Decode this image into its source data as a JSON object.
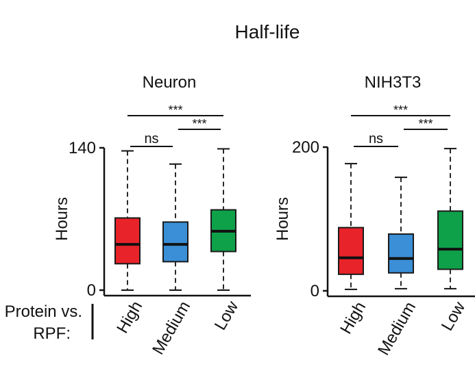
{
  "figure_title": "Half-life",
  "row_label_line1": "Protein vs.",
  "row_label_line2": "RPF:",
  "colors": {
    "High": "#e8232a",
    "Medium": "#3a8fd6",
    "Low": "#0fa14a",
    "edge": "#1a1a1a"
  },
  "chart_data": [
    {
      "type": "box",
      "title": "Neuron",
      "ylabel": "Hours",
      "xlabel": "",
      "ylim": [
        0,
        140
      ],
      "yticks": [
        0,
        140
      ],
      "categories": [
        "High",
        "Medium",
        "Low"
      ],
      "boxes": [
        {
          "category": "High",
          "whisker_low": 0,
          "q1": 26,
          "median": 45,
          "q3": 71,
          "whisker_high": 137
        },
        {
          "category": "Medium",
          "whisker_low": 0,
          "q1": 28,
          "median": 45,
          "q3": 67,
          "whisker_high": 124
        },
        {
          "category": "Low",
          "whisker_low": 0,
          "q1": 38,
          "median": 58,
          "q3": 79,
          "whisker_high": 139
        }
      ],
      "significance": [
        {
          "from": "High",
          "to": "Medium",
          "label": "ns"
        },
        {
          "from": "Medium",
          "to": "Low",
          "label": "***"
        },
        {
          "from": "High",
          "to": "Low",
          "label": "***"
        }
      ]
    },
    {
      "type": "box",
      "title": "NIH3T3",
      "ylabel": "Hours",
      "xlabel": "",
      "ylim": [
        0,
        200
      ],
      "yticks": [
        0,
        200
      ],
      "categories": [
        "High",
        "Medium",
        "Low"
      ],
      "boxes": [
        {
          "category": "High",
          "whisker_low": 2,
          "q1": 23,
          "median": 46,
          "q3": 88,
          "whisker_high": 177
        },
        {
          "category": "Medium",
          "whisker_low": 3,
          "q1": 25,
          "median": 45,
          "q3": 79,
          "whisker_high": 158
        },
        {
          "category": "Low",
          "whisker_low": 3,
          "q1": 30,
          "median": 58,
          "q3": 111,
          "whisker_high": 198
        }
      ],
      "significance": [
        {
          "from": "High",
          "to": "Medium",
          "label": "ns"
        },
        {
          "from": "Medium",
          "to": "Low",
          "label": "***"
        },
        {
          "from": "High",
          "to": "Low",
          "label": "***"
        }
      ]
    }
  ]
}
